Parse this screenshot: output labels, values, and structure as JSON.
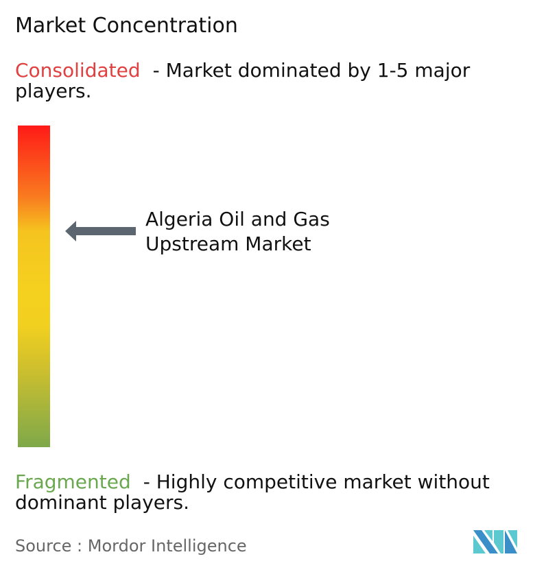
{
  "title": "Market Concentration",
  "consolidated": {
    "label": "Consolidated",
    "description": "- Market dominated by 1-5 major players.",
    "color": "#e0403f"
  },
  "fragmented": {
    "label": "Fragmented",
    "description": "- Highly competitive market without dominant players.",
    "color": "#6aa84f"
  },
  "indicator": {
    "market": "Algeria Oil and Gas Upstream Market",
    "concentration_level": 0.67,
    "arrow_color": "#5b6670"
  },
  "source": "Source :  Mordor Intelligence",
  "logo": {
    "name": "mordor-intelligence-logo",
    "colors": [
      "#3a8fc8",
      "#5cc8d0"
    ]
  }
}
